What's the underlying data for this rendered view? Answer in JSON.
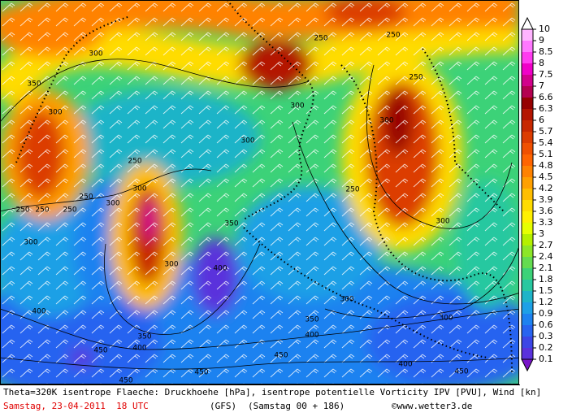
{
  "colorbar": {
    "labels": [
      10,
      9,
      8.5,
      8,
      7.5,
      7,
      6.6,
      6.3,
      6,
      5.7,
      5.4,
      5.1,
      4.8,
      4.5,
      4.2,
      3.9,
      3.6,
      3.3,
      3,
      2.7,
      2.4,
      2.1,
      1.8,
      1.5,
      1.2,
      0.9,
      0.6,
      0.3,
      0.2,
      0.1
    ],
    "colors": [
      "#ffb4ff",
      "#ff78ff",
      "#ff3cf0",
      "#f000c8",
      "#d2008c",
      "#b40050",
      "#960000",
      "#b41400",
      "#c82800",
      "#dc3c00",
      "#f05000",
      "#ff6400",
      "#ff8200",
      "#ffa000",
      "#ffbe00",
      "#ffdc00",
      "#fff000",
      "#e6ff00",
      "#b4f000",
      "#8ce628",
      "#64dc50",
      "#3cd278",
      "#28c8a0",
      "#1eb4c8",
      "#1ea0e6",
      "#1e82f0",
      "#2864f0",
      "#3c46e6",
      "#5a32dc"
    ],
    "over_color": "#ffffff",
    "under_color": "#7814c8"
  },
  "contour_labels": [
    300,
    300,
    300,
    300,
    300,
    300,
    300,
    300,
    300,
    300,
    300,
    300,
    250,
    250,
    250,
    250,
    250,
    250,
    250,
    250,
    250,
    350,
    350,
    350,
    350,
    400,
    400,
    400,
    400,
    400,
    450,
    450,
    450,
    450,
    450
  ],
  "footer": {
    "description": "Theta=320K isentrope Flaeche: Druckhoehe [hPa], isentrope potentielle Vorticity IPV [PVU], Wind [kn]",
    "date": "Samstag, 23-04-2011  18 UTC",
    "model": "(GFS)",
    "run": "(Samstag 00 + 186)",
    "copyright": "©www.wetter3.de"
  }
}
